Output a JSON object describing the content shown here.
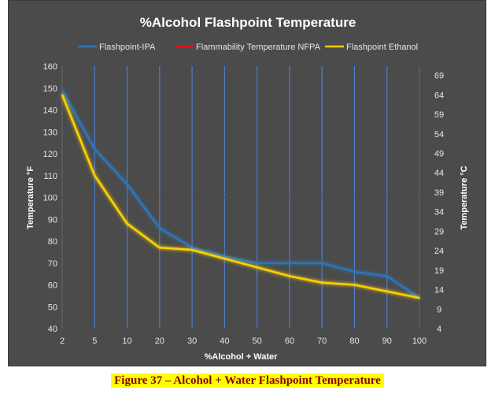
{
  "chart_data": {
    "type": "line",
    "title": "%Alcohol Flashpoint Temperature",
    "xlabel": "%Alcohol + Water",
    "ylabel": "Temperature °F",
    "y2label": "Temperature °C",
    "categories": [
      "2",
      "5",
      "10",
      "20",
      "30",
      "40",
      "50",
      "60",
      "70",
      "80",
      "90",
      "100"
    ],
    "ylim": [
      40,
      160
    ],
    "yticks": [
      40,
      50,
      60,
      70,
      80,
      90,
      100,
      110,
      120,
      130,
      140,
      150,
      160
    ],
    "y2ticks": [
      "4",
      "9",
      "14",
      "19",
      "24",
      "29",
      "34",
      "39",
      "44",
      "49",
      "54",
      "59",
      "64",
      "69"
    ],
    "grid": "vertical",
    "legend_position": "top",
    "series": [
      {
        "name": "Flashpoint-IPA",
        "color": "#2e75b6",
        "values": [
          149,
          122,
          106,
          86,
          77,
          73,
          70,
          70,
          70,
          66,
          64,
          54
        ]
      },
      {
        "name": "Flammability Temperature NFPA",
        "color": "#e0101e",
        "values": [
          100,
          100,
          100,
          100,
          100,
          100,
          100,
          100,
          100,
          100,
          100,
          100
        ]
      },
      {
        "name": "Flashpoint Ethanol",
        "color": "#ffd000",
        "values": [
          147,
          110,
          88,
          77,
          76,
          72,
          68,
          64,
          61,
          60,
          57,
          54
        ]
      }
    ]
  },
  "caption": "Figure 37 – Alcohol + Water Flashpoint Temperature"
}
